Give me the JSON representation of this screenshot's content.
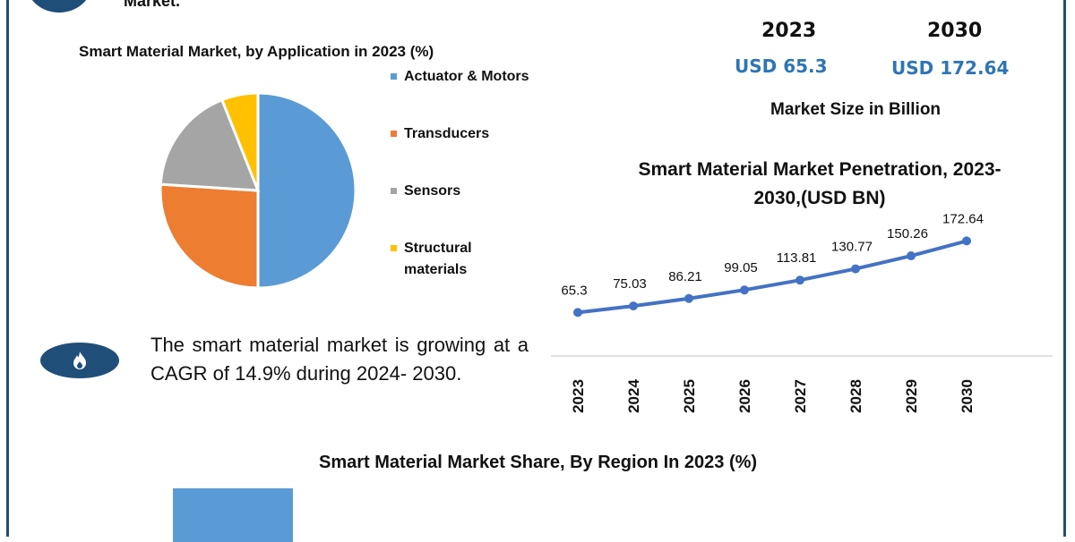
{
  "header": {
    "partial_title": "Market."
  },
  "colors": {
    "border": "#1f4e79",
    "accent": "#2e75b6",
    "line": "#4472c4"
  },
  "stats": {
    "items": [
      {
        "year": "2023",
        "value": "USD 65.3"
      },
      {
        "year": "2030",
        "value": "USD 172.64"
      }
    ],
    "unit_label": "Market Size in Billion"
  },
  "cagr_text": " The smart material market is growing at a CAGR of 14.9% during 2024- 2030.",
  "icons": {
    "top": "circle-badge-icon",
    "cagr": "flame-icon"
  },
  "chart_data": [
    {
      "type": "pie",
      "title": "Smart Material Market, by Application in 2023  (%)",
      "legend_position": "right",
      "categories": [
        "Actuator & Motors",
        "Transducers",
        "Sensors",
        "Structural materials"
      ],
      "values": [
        50,
        26,
        18,
        6
      ],
      "colors": [
        "#5b9bd5",
        "#ed7d31",
        "#a5a5a5",
        "#ffc000"
      ]
    },
    {
      "type": "line",
      "title": "Smart Material Market Penetration, 2023-2030,(USD BN)",
      "x": [
        "2023",
        "2024",
        "2025",
        "2026",
        "2027",
        "2028",
        "2029",
        "2030"
      ],
      "values": [
        65.3,
        75.03,
        86.21,
        99.05,
        113.81,
        130.77,
        150.26,
        172.64
      ],
      "data_labels": [
        "65.3",
        "75.03",
        "86.21",
        "99.05",
        "113.81",
        "130.77",
        "150.26",
        "172.64"
      ],
      "ylim": [
        0,
        180
      ],
      "grid": false,
      "color": "#4472c4"
    },
    {
      "type": "bar",
      "title": "Smart Material Market Share, By Region In 2023 (%)",
      "color": "#5b9bd5"
    }
  ]
}
